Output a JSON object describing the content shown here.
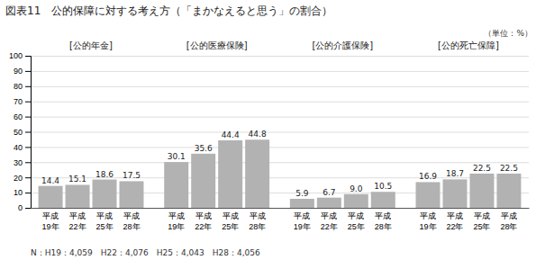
{
  "chart_data": {
    "type": "bar",
    "title": "図表11　公的保障に対する考え方（「まかなえると思う」の割合）",
    "ylabel": "（単位：%）",
    "footnote": "N：H19：4,059　H22：4,076　H25：4,043　H28：4,056",
    "categories": [
      "平成\n19年",
      "平成\n22年",
      "平成\n25年",
      "平成\n28年"
    ],
    "series": [
      {
        "name": "[公的年金]",
        "values": [
          14.4,
          15.1,
          18.6,
          17.5
        ]
      },
      {
        "name": "[公的医療保険]",
        "values": [
          30.1,
          35.6,
          44.4,
          44.8
        ]
      },
      {
        "name": "[公的介護保険]",
        "values": [
          5.9,
          6.7,
          9.0,
          10.5
        ],
        "value_labels": [
          "5.9",
          "6.7",
          "9.0",
          "10.5"
        ]
      },
      {
        "name": "[公的死亡保障]",
        "values": [
          16.9,
          18.7,
          22.5,
          22.5
        ]
      }
    ],
    "color": "#b2b2b2",
    "ylim": [
      0,
      100
    ],
    "yticks": [
      0,
      10,
      20,
      30,
      40,
      50,
      60,
      70,
      80,
      90,
      100
    ],
    "grid": true,
    "data_labels": true
  }
}
